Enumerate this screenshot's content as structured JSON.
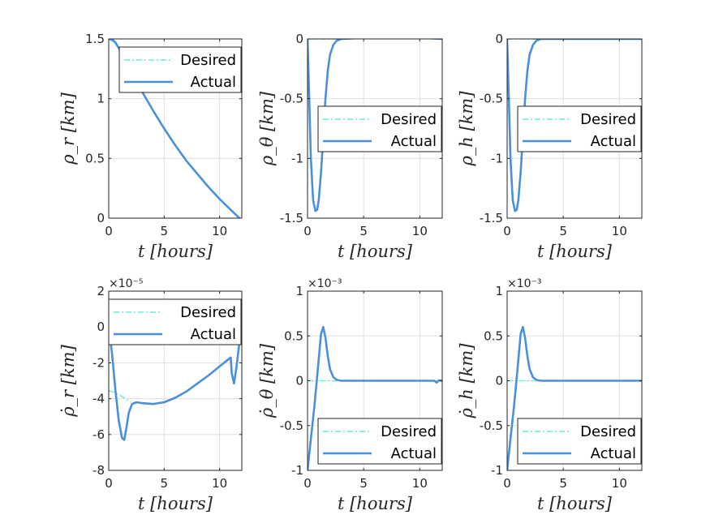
{
  "colors": {
    "desired": "#7ff0dc",
    "actual": "#4a90d9",
    "grid": "#dfdfdf",
    "axis": "#262626"
  },
  "legend": {
    "desired": "Desired",
    "actual": "Actual"
  },
  "chart_data": [
    {
      "type": "line",
      "xlabel": "t [hours]",
      "ylabel": "ρ_r [km]",
      "xlim": [
        0,
        12
      ],
      "ylim": [
        0,
        1.5
      ],
      "xticks": [
        0,
        5,
        10
      ],
      "xtick_labels": [
        "0",
        "5",
        "10"
      ],
      "yticks": [
        0,
        0.5,
        1,
        1.5
      ],
      "ytick_labels": [
        "0",
        "0.5",
        "1",
        "1.5"
      ],
      "exponent": "",
      "legend_pos": "top-right",
      "grid": true,
      "series": [
        {
          "name": "Desired",
          "style": "dashdot",
          "x": [
            0,
            0.2,
            0.5,
            0.8,
            1.0
          ],
          "y": [
            1.5,
            1.49,
            1.47,
            1.44,
            1.42
          ]
        },
        {
          "name": "Actual",
          "style": "solid",
          "x": [
            0,
            0.3,
            0.6,
            1.0,
            1.5,
            2,
            3,
            4,
            5,
            6,
            7,
            8,
            9,
            10,
            11,
            11.5,
            11.8
          ],
          "y": [
            1.5,
            1.495,
            1.47,
            1.41,
            1.32,
            1.23,
            1.06,
            0.9,
            0.75,
            0.61,
            0.48,
            0.37,
            0.26,
            0.16,
            0.07,
            0.025,
            0.0
          ]
        }
      ]
    },
    {
      "type": "line",
      "xlabel": "t [hours]",
      "ylabel": "ρ_θ [km]",
      "xlim": [
        0,
        12
      ],
      "ylim": [
        -1.5,
        0
      ],
      "xticks": [
        0,
        5,
        10
      ],
      "xtick_labels": [
        "0",
        "5",
        "10"
      ],
      "yticks": [
        -1.5,
        -1,
        -0.5,
        0
      ],
      "ytick_labels": [
        "-1.5",
        "-1",
        "-0.5",
        "0"
      ],
      "exponent": "",
      "legend_pos": "bottom-right",
      "grid": true,
      "series": [
        {
          "name": "Desired",
          "style": "dashdot",
          "x": [
            0,
            1,
            2,
            3
          ],
          "y": [
            0,
            0,
            0,
            0
          ]
        },
        {
          "name": "Actual",
          "style": "solid",
          "x": [
            0,
            0.15,
            0.3,
            0.5,
            0.7,
            0.85,
            1.0,
            1.2,
            1.4,
            1.6,
            1.8,
            2.0,
            2.3,
            2.6,
            3,
            4,
            5,
            6,
            7,
            8,
            9,
            10,
            11,
            12
          ],
          "y": [
            0,
            -0.5,
            -1.0,
            -1.35,
            -1.44,
            -1.43,
            -1.35,
            -1.12,
            -0.82,
            -0.5,
            -0.27,
            -0.13,
            -0.05,
            -0.015,
            0,
            0.005,
            0.01,
            0.012,
            0.015,
            0.015,
            0.012,
            0.01,
            0.005,
            0
          ]
        }
      ]
    },
    {
      "type": "line",
      "xlabel": "t [hours]",
      "ylabel": "ρ_h [km]",
      "xlim": [
        0,
        12
      ],
      "ylim": [
        -1.5,
        0
      ],
      "xticks": [
        0,
        5,
        10
      ],
      "xtick_labels": [
        "0",
        "5",
        "10"
      ],
      "yticks": [
        -1.5,
        -1,
        -0.5,
        0
      ],
      "ytick_labels": [
        "-1.5",
        "-1",
        "-0.5",
        "0"
      ],
      "exponent": "",
      "legend_pos": "bottom-right",
      "grid": true,
      "series": [
        {
          "name": "Desired",
          "style": "dashdot",
          "x": [
            0,
            1,
            2,
            3
          ],
          "y": [
            0,
            0,
            0,
            0
          ]
        },
        {
          "name": "Actual",
          "style": "solid",
          "x": [
            0,
            0.15,
            0.3,
            0.5,
            0.7,
            0.85,
            1.0,
            1.2,
            1.4,
            1.6,
            1.8,
            2.0,
            2.3,
            2.6,
            3,
            4,
            6,
            8,
            10,
            12
          ],
          "y": [
            0,
            -0.5,
            -1.0,
            -1.35,
            -1.44,
            -1.43,
            -1.35,
            -1.12,
            -0.82,
            -0.5,
            -0.27,
            -0.13,
            -0.05,
            -0.015,
            0,
            0,
            0,
            0,
            0,
            0
          ]
        }
      ]
    },
    {
      "type": "line",
      "xlabel": "t [hours]",
      "ylabel": "ρ̇_r [km]",
      "xlim": [
        0,
        12
      ],
      "ylim": [
        -8,
        2
      ],
      "xticks": [
        0,
        5,
        10
      ],
      "xtick_labels": [
        "0",
        "5",
        "10"
      ],
      "yticks": [
        -8,
        -6,
        -4,
        -2,
        0,
        2
      ],
      "ytick_labels": [
        "-8",
        "-6",
        "-4",
        "-2",
        "0",
        "2"
      ],
      "exponent": "×10⁻⁵",
      "legend_pos": "top-right",
      "grid": true,
      "series": [
        {
          "name": "Desired",
          "style": "dashdot",
          "x": [
            0,
            0.5,
            1.0,
            1.5,
            2.0
          ],
          "y": [
            -3.55,
            -3.65,
            -3.8,
            -4.0,
            -4.2
          ]
        },
        {
          "name": "Actual",
          "style": "solid",
          "x": [
            0,
            0.3,
            0.6,
            0.9,
            1.2,
            1.4,
            1.6,
            1.8,
            2.1,
            2.5,
            3,
            4,
            5,
            6,
            7,
            8,
            9,
            10,
            10.6,
            11.0,
            11.1,
            11.3,
            11.5,
            11.8,
            12
          ],
          "y": [
            0,
            -1.5,
            -3.5,
            -5.2,
            -6.2,
            -6.3,
            -5.6,
            -4.8,
            -4.3,
            -4.2,
            -4.25,
            -4.3,
            -4.2,
            -3.95,
            -3.6,
            -3.15,
            -2.7,
            -2.2,
            -1.9,
            -1.7,
            -2.6,
            -3.15,
            -2.3,
            -0.8,
            1.0
          ]
        }
      ]
    },
    {
      "type": "line",
      "xlabel": "t [hours]",
      "ylabel": "ρ̇_θ [km]",
      "xlim": [
        0,
        12
      ],
      "ylim": [
        -1,
        1
      ],
      "xticks": [
        0,
        5,
        10
      ],
      "xtick_labels": [
        "0",
        "5",
        "10"
      ],
      "yticks": [
        -1,
        -0.5,
        0,
        0.5,
        1
      ],
      "ytick_labels": [
        "-1",
        "-0.5",
        "0",
        "0.5",
        "1"
      ],
      "exponent": "×10⁻³",
      "legend_pos": "bottom-right",
      "grid": true,
      "series": [
        {
          "name": "Desired",
          "style": "dashdot",
          "x": [
            0,
            1,
            2,
            3
          ],
          "y": [
            0,
            0,
            0,
            0
          ]
        },
        {
          "name": "Actual",
          "style": "solid",
          "x": [
            0,
            0.3,
            0.6,
            0.9,
            1.2,
            1.4,
            1.6,
            1.8,
            2.0,
            2.3,
            2.6,
            3,
            4,
            6,
            8,
            10,
            11.3,
            11.5,
            11.7,
            12
          ],
          "y": [
            -1.0,
            -0.65,
            -0.3,
            0.1,
            0.52,
            0.6,
            0.48,
            0.28,
            0.13,
            0.04,
            0.01,
            0,
            0,
            0,
            0,
            0,
            0,
            -0.02,
            0.005,
            0
          ]
        }
      ]
    },
    {
      "type": "line",
      "xlabel": "t [hours]",
      "ylabel": "ρ̇_h [km]",
      "xlim": [
        0,
        12
      ],
      "ylim": [
        -1,
        1
      ],
      "xticks": [
        0,
        5,
        10
      ],
      "xtick_labels": [
        "0",
        "5",
        "10"
      ],
      "yticks": [
        -1,
        -0.5,
        0,
        0.5,
        1
      ],
      "ytick_labels": [
        "-1",
        "-0.5",
        "0",
        "0.5",
        "1"
      ],
      "exponent": "×10⁻³",
      "legend_pos": "bottom-right",
      "grid": true,
      "series": [
        {
          "name": "Desired",
          "style": "dashdot",
          "x": [
            0,
            1,
            2,
            3
          ],
          "y": [
            0,
            0,
            0,
            0
          ]
        },
        {
          "name": "Actual",
          "style": "solid",
          "x": [
            0,
            0.3,
            0.6,
            0.9,
            1.2,
            1.4,
            1.6,
            1.8,
            2.0,
            2.3,
            2.6,
            3,
            4,
            6,
            8,
            10,
            12
          ],
          "y": [
            -1.0,
            -0.65,
            -0.3,
            0.1,
            0.52,
            0.6,
            0.48,
            0.28,
            0.13,
            0.04,
            0.01,
            0,
            0,
            0,
            0,
            0,
            0
          ]
        }
      ]
    }
  ]
}
